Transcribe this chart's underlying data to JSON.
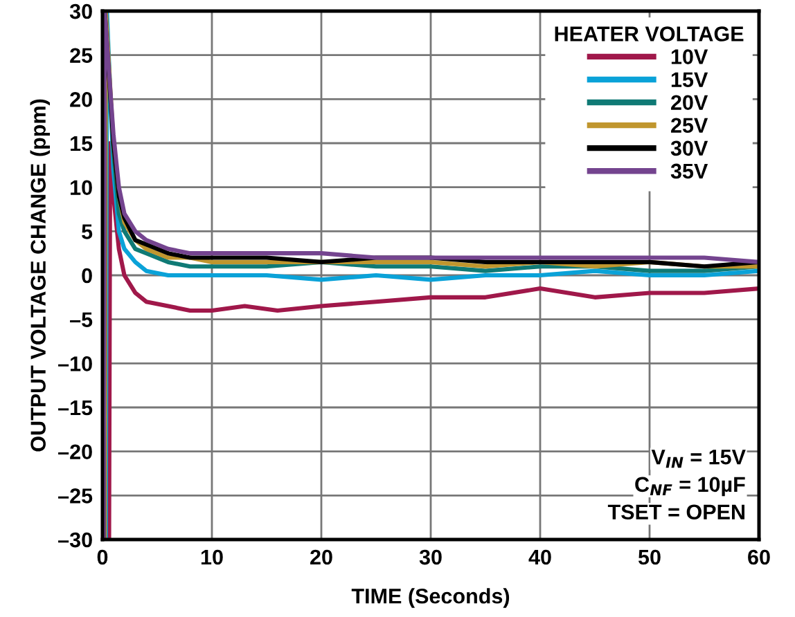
{
  "chart_data": {
    "type": "line",
    "xlabel": "TIME (Seconds)",
    "ylabel": "OUTPUT VOLTAGE CHANGE (ppm)",
    "xlim": [
      0,
      60
    ],
    "xticks": [
      0,
      10,
      20,
      30,
      40,
      50,
      60
    ],
    "ylim": [
      -30,
      30
    ],
    "yticks": [
      {
        "value": -30,
        "label": "–30"
      },
      {
        "value": -25,
        "label": "–25"
      },
      {
        "value": -20,
        "label": "–20"
      },
      {
        "value": -15,
        "label": "–15"
      },
      {
        "value": -10,
        "label": "–10"
      },
      {
        "value": -5,
        "label": "–5"
      },
      0,
      5,
      10,
      15,
      20,
      25,
      30
    ],
    "grid": true,
    "legend": "top right",
    "legend_title": "HEATER VOLTAGE",
    "line_style": "solid",
    "marker": "none",
    "annotations": [
      "V$_{IN}$ = 15V",
      "C$_{NF}$ = 10µF",
      "TSET = OPEN"
    ],
    "series": [
      {
        "name": "10V",
        "color": "#a0184a",
        "x": [
          0.6,
          0.7,
          1,
          1.5,
          2,
          3,
          4,
          6,
          8,
          10,
          13,
          16,
          20,
          25,
          30,
          35,
          40,
          45,
          50,
          55,
          60
        ],
        "values": [
          -30,
          15,
          9,
          3,
          0,
          -2,
          -3,
          -3.5,
          -4,
          -4,
          -3.5,
          -4,
          -3.5,
          -3,
          -2.5,
          -2.5,
          -1.5,
          -2.5,
          -2,
          -2,
          -1.5
        ]
      },
      {
        "name": "15V",
        "color": "#0aa2d8",
        "x": [
          0.3,
          0.4,
          1,
          1.5,
          2,
          3,
          4,
          6,
          8,
          10,
          15,
          20,
          25,
          30,
          35,
          40,
          45,
          50,
          55,
          60
        ],
        "values": [
          -30,
          30,
          12,
          5,
          3,
          1.5,
          0.5,
          0,
          0,
          0,
          0,
          -0.5,
          0,
          -0.5,
          0,
          0,
          0.5,
          0,
          0,
          0.5
        ]
      },
      {
        "name": "20V",
        "color": "#0f7a75",
        "x": [
          0.2,
          0.3,
          1,
          1.5,
          2,
          3,
          4,
          6,
          8,
          10,
          15,
          20,
          25,
          30,
          35,
          40,
          45,
          50,
          55,
          60
        ],
        "values": [
          -30,
          30,
          14,
          7,
          5,
          3,
          2.5,
          1.5,
          1,
          1,
          1,
          1.5,
          1,
          1,
          0.5,
          1,
          1,
          0.5,
          0.5,
          1
        ]
      },
      {
        "name": "25V",
        "color": "#c0962e",
        "x": [
          0.2,
          0.3,
          1,
          1.5,
          2,
          3,
          4,
          6,
          8,
          10,
          15,
          20,
          25,
          30,
          35,
          40,
          45,
          50,
          55,
          60
        ],
        "values": [
          -30,
          30,
          15,
          9,
          6,
          4,
          3,
          2,
          2,
          1.5,
          1.5,
          1.5,
          1.5,
          1.5,
          1,
          1.5,
          1,
          1.5,
          1,
          1
        ]
      },
      {
        "name": "30V",
        "color": "#000000",
        "x": [
          0.1,
          0.2,
          1,
          1.5,
          2,
          3,
          4,
          6,
          8,
          10,
          15,
          20,
          25,
          30,
          35,
          40,
          45,
          50,
          55,
          60
        ],
        "values": [
          -30,
          30,
          15,
          9,
          6.5,
          4,
          3.5,
          2.5,
          2,
          2,
          2,
          1.5,
          2,
          2,
          1.5,
          1.5,
          1.5,
          1.5,
          1,
          1.5
        ]
      },
      {
        "name": "35V",
        "color": "#74448f",
        "x": [
          0.1,
          0.2,
          1,
          1.5,
          2,
          3,
          4,
          6,
          8,
          10,
          15,
          20,
          25,
          30,
          35,
          40,
          45,
          50,
          55,
          60
        ],
        "values": [
          -30,
          30,
          16,
          10,
          7,
          5,
          4,
          3,
          2.5,
          2.5,
          2.5,
          2.5,
          2,
          2,
          2,
          2,
          2,
          2,
          2,
          1.5
        ]
      }
    ]
  }
}
